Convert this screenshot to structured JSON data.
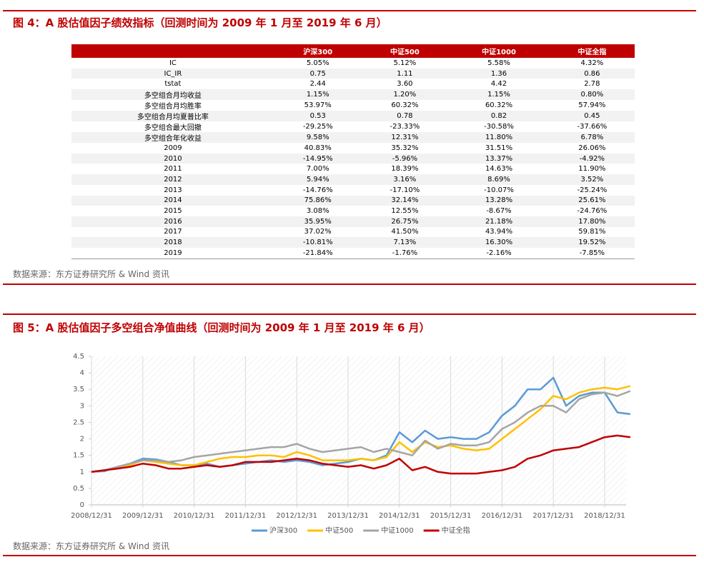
{
  "figure4": {
    "title": "图 4：A 股估值因子绩效指标（回测时间为 2009 年 1 月至 2019 年 6 月）",
    "table": {
      "header": [
        "沪深300",
        "中证500",
        "中证1000",
        "中证全指"
      ],
      "rows": [
        [
          "IC",
          "5.05%",
          "5.12%",
          "5.58%",
          "4.32%"
        ],
        [
          "IC_IR",
          "0.75",
          "1.11",
          "1.36",
          "0.86"
        ],
        [
          "tstat",
          "2.44",
          "3.60",
          "4.42",
          "2.78"
        ],
        [
          "多空组合月均收益",
          "1.15%",
          "1.20%",
          "1.15%",
          "0.80%"
        ],
        [
          "多空组合月均胜率",
          "53.97%",
          "60.32%",
          "60.32%",
          "57.94%"
        ],
        [
          "多空组合月均夏普比率",
          "0.53",
          "0.78",
          "0.82",
          "0.45"
        ],
        [
          "多空组合最大回撤",
          "-29.25%",
          "-23.33%",
          "-30.58%",
          "-37.66%"
        ],
        [
          "多空组合年化收益",
          "9.58%",
          "12.31%",
          "11.80%",
          "6.78%"
        ],
        [
          "2009",
          "40.83%",
          "35.32%",
          "31.51%",
          "26.06%"
        ],
        [
          "2010",
          "-14.95%",
          "-5.96%",
          "13.37%",
          "-4.92%"
        ],
        [
          "2011",
          "7.00%",
          "18.39%",
          "14.63%",
          "11.90%"
        ],
        [
          "2012",
          "5.94%",
          "3.16%",
          "8.69%",
          "3.52%"
        ],
        [
          "2013",
          "-14.76%",
          "-17.10%",
          "-10.07%",
          "-25.24%"
        ],
        [
          "2014",
          "75.86%",
          "32.14%",
          "13.28%",
          "25.61%"
        ],
        [
          "2015",
          "3.08%",
          "12.55%",
          "-8.67%",
          "-24.76%"
        ],
        [
          "2016",
          "35.95%",
          "26.75%",
          "21.18%",
          "17.80%"
        ],
        [
          "2017",
          "37.02%",
          "41.50%",
          "43.94%",
          "59.81%"
        ],
        [
          "2018",
          "-10.81%",
          "7.13%",
          "16.30%",
          "19.52%"
        ],
        [
          "2019",
          "-21.84%",
          "-1.76%",
          "-2.16%",
          "-7.85%"
        ]
      ]
    },
    "source": "数据来源：东方证券研究所 & Wind 资讯"
  },
  "chart_data": {
    "type": "line",
    "title": "图 5：A 股估值因子多空组合净值曲线（回测时间为 2009 年 1 月至 2019 年 6 月）",
    "categories": [
      "2008/12/31",
      null,
      null,
      null,
      "2009/12/31",
      null,
      null,
      null,
      "2010/12/31",
      null,
      null,
      null,
      "2011/12/31",
      null,
      null,
      null,
      "2012/12/31",
      null,
      null,
      null,
      "2013/12/31",
      null,
      null,
      null,
      "2014/12/31",
      null,
      null,
      null,
      "2015/12/31",
      null,
      null,
      null,
      "2016/12/31",
      null,
      null,
      null,
      "2017/12/31",
      null,
      null,
      null,
      "2018/12/31",
      null,
      null
    ],
    "ylim": [
      0,
      4.5
    ],
    "yticks": [
      0,
      0.5,
      1,
      1.5,
      2,
      2.5,
      3,
      3.5,
      4,
      4.5
    ],
    "series": [
      {
        "name": "沪深300",
        "color": "#5b9bd5",
        "values": [
          1.0,
          1.02,
          1.15,
          1.25,
          1.4,
          1.38,
          1.3,
          1.2,
          1.2,
          1.25,
          1.15,
          1.2,
          1.25,
          1.3,
          1.35,
          1.3,
          1.35,
          1.3,
          1.2,
          1.25,
          1.3,
          1.4,
          1.35,
          1.5,
          2.2,
          1.9,
          2.25,
          2.0,
          2.05,
          2.0,
          2.0,
          2.2,
          2.7,
          3.0,
          3.5,
          3.5,
          3.85,
          3.0,
          3.3,
          3.4,
          3.4,
          2.8,
          2.75
        ]
      },
      {
        "name": "中证500",
        "color": "#ffc000",
        "values": [
          1.0,
          1.05,
          1.1,
          1.2,
          1.35,
          1.3,
          1.25,
          1.2,
          1.2,
          1.3,
          1.4,
          1.45,
          1.45,
          1.5,
          1.5,
          1.45,
          1.6,
          1.5,
          1.35,
          1.35,
          1.35,
          1.4,
          1.35,
          1.45,
          1.9,
          1.6,
          1.9,
          1.75,
          1.8,
          1.7,
          1.65,
          1.7,
          2.0,
          2.3,
          2.6,
          2.9,
          3.3,
          3.2,
          3.4,
          3.5,
          3.55,
          3.5,
          3.6
        ]
      },
      {
        "name": "中证1000",
        "color": "#a5a5a5",
        "values": [
          1.0,
          1.05,
          1.15,
          1.25,
          1.35,
          1.35,
          1.3,
          1.35,
          1.45,
          1.5,
          1.55,
          1.6,
          1.65,
          1.7,
          1.75,
          1.75,
          1.85,
          1.7,
          1.6,
          1.65,
          1.7,
          1.75,
          1.6,
          1.7,
          1.6,
          1.5,
          1.95,
          1.7,
          1.85,
          1.8,
          1.8,
          1.9,
          2.3,
          2.5,
          2.8,
          3.0,
          3.0,
          2.8,
          3.2,
          3.35,
          3.4,
          3.3,
          3.45
        ]
      },
      {
        "name": "中证全指",
        "color": "#c00000",
        "values": [
          1.0,
          1.05,
          1.1,
          1.15,
          1.25,
          1.2,
          1.1,
          1.1,
          1.15,
          1.2,
          1.15,
          1.2,
          1.3,
          1.3,
          1.3,
          1.35,
          1.4,
          1.35,
          1.25,
          1.2,
          1.15,
          1.2,
          1.1,
          1.2,
          1.4,
          1.05,
          1.15,
          1.0,
          0.95,
          0.95,
          0.95,
          1.0,
          1.05,
          1.15,
          1.4,
          1.5,
          1.65,
          1.7,
          1.75,
          1.9,
          2.05,
          2.1,
          2.05
        ]
      }
    ]
  },
  "figure5": {
    "source": "数据来源：东方证券研究所 & Wind 资讯"
  }
}
